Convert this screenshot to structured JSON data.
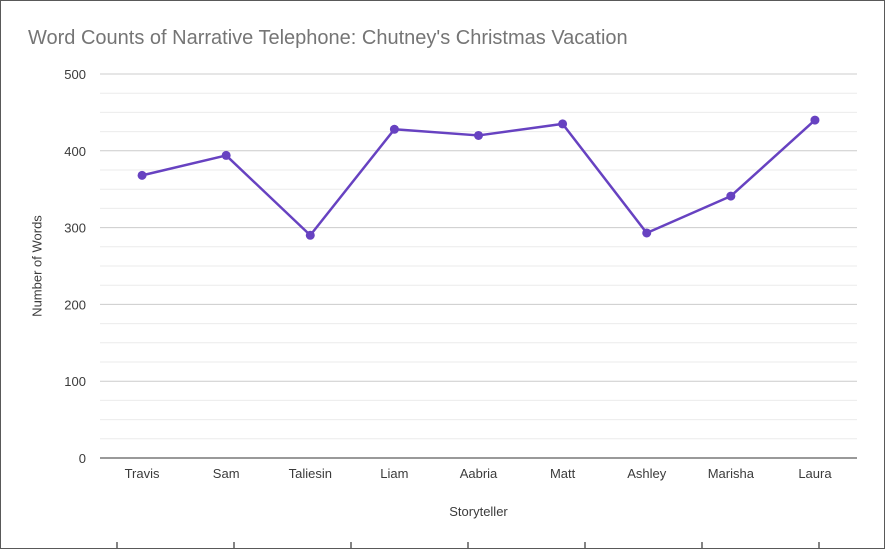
{
  "chart_data": {
    "type": "line",
    "title": "Word Counts of Narrative Telephone: Chutney's Christmas Vacation",
    "xlabel": "Storyteller",
    "ylabel": "Number of Words",
    "categories": [
      "Travis",
      "Sam",
      "Taliesin",
      "Liam",
      "Aabria",
      "Matt",
      "Ashley",
      "Marisha",
      "Laura"
    ],
    "values": [
      368,
      394,
      290,
      428,
      420,
      435,
      293,
      341,
      440
    ],
    "ylim": [
      0,
      500
    ],
    "yticks": [
      0,
      100,
      200,
      300,
      400,
      500
    ],
    "minor_gridline_step": 25,
    "grid": true,
    "legend": "none",
    "series_color": "#6742c1"
  },
  "colors": {
    "title_text": "#757575",
    "axis_text": "#3b3b3b",
    "gridline_major": "#cccccc",
    "gridline_minor": "#ebebeb",
    "baseline": "#333333",
    "background": "#ffffff",
    "border": "#595959"
  }
}
